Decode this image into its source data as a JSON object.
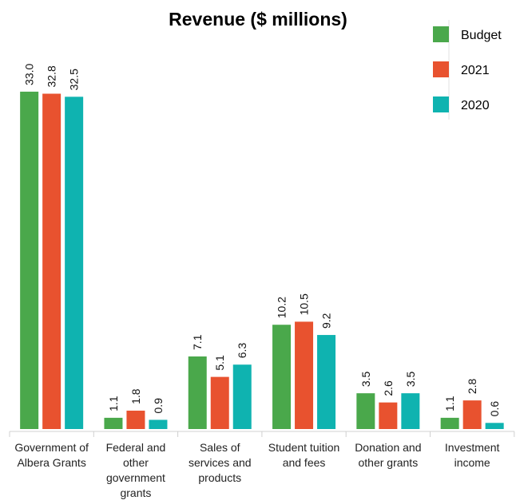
{
  "chart_data": {
    "type": "bar",
    "title": "Revenue ($ millions)",
    "xlabel": "",
    "ylabel": "",
    "ylim": [
      0,
      35
    ],
    "grid": false,
    "legend_position": "top-right",
    "categories": [
      [
        "Government of",
        "Albera Grants"
      ],
      [
        "Federal and",
        "other",
        "government",
        "grants"
      ],
      [
        "Sales of",
        "services and",
        "products"
      ],
      [
        "Student tuition",
        "and fees"
      ],
      [
        "Donation and",
        "other grants"
      ],
      [
        "Investment",
        "income"
      ]
    ],
    "series": [
      {
        "name": "Budget",
        "color": "#4aa84b",
        "values": [
          33.0,
          1.1,
          7.1,
          10.2,
          3.5,
          1.1
        ],
        "labels": [
          "33.0",
          "1.1",
          "7.1",
          "10.2",
          "3.5",
          "1.1"
        ]
      },
      {
        "name": "2021",
        "color": "#e8522f",
        "values": [
          32.8,
          1.8,
          5.1,
          10.5,
          2.6,
          2.8
        ],
        "labels": [
          "32.8",
          "1.8",
          "5.1",
          "10.5",
          "2.6",
          "2.8"
        ]
      },
      {
        "name": "2020",
        "color": "#0fb3b0",
        "values": [
          32.5,
          0.9,
          6.3,
          9.2,
          3.5,
          0.6
        ],
        "labels": [
          "32.5",
          "0.9",
          "6.3",
          "9.2",
          "3.5",
          "0.6"
        ]
      }
    ]
  }
}
